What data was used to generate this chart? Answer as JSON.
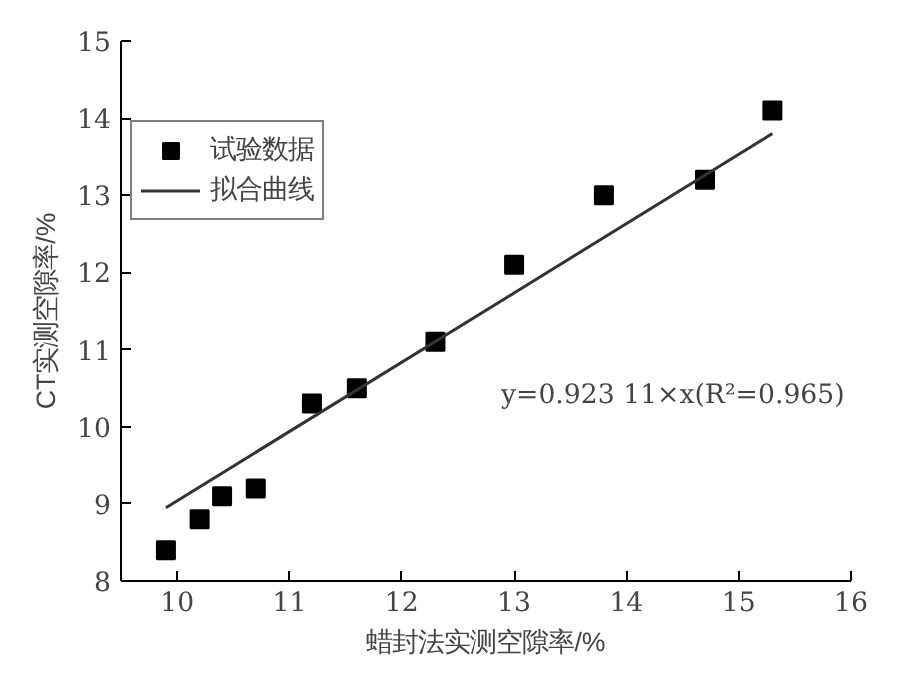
{
  "chart_data": {
    "type": "scatter",
    "xlabel": "蜡封法实测空隙率/%",
    "ylabel": "CT实测空隙率/%",
    "xlim": [
      9.5,
      16
    ],
    "ylim": [
      8,
      15
    ],
    "xticks": [
      10,
      11,
      12,
      13,
      14,
      15,
      16
    ],
    "yticks": [
      8,
      9,
      10,
      11,
      12,
      13,
      14,
      15
    ],
    "grid": false,
    "legend": "left",
    "marker": "square",
    "series": [
      {
        "name": "试验数据",
        "color": "#000000",
        "x": [
          9.9,
          10.2,
          10.4,
          10.7,
          11.2,
          11.6,
          12.3,
          13.0,
          13.8,
          14.7,
          15.3
        ],
        "values": [
          8.4,
          8.8,
          9.1,
          9.2,
          10.3,
          10.5,
          11.1,
          12.1,
          13.0,
          13.2,
          14.1
        ]
      },
      {
        "name": "拟合曲线",
        "type": "line",
        "color": "#333333",
        "line_style": "solid",
        "marker": "none",
        "x": [
          9.9,
          15.3
        ],
        "values": [
          8.95,
          13.8
        ]
      }
    ],
    "annotations": [
      "y=0.923 11×x(R²=0.965)"
    ]
  }
}
